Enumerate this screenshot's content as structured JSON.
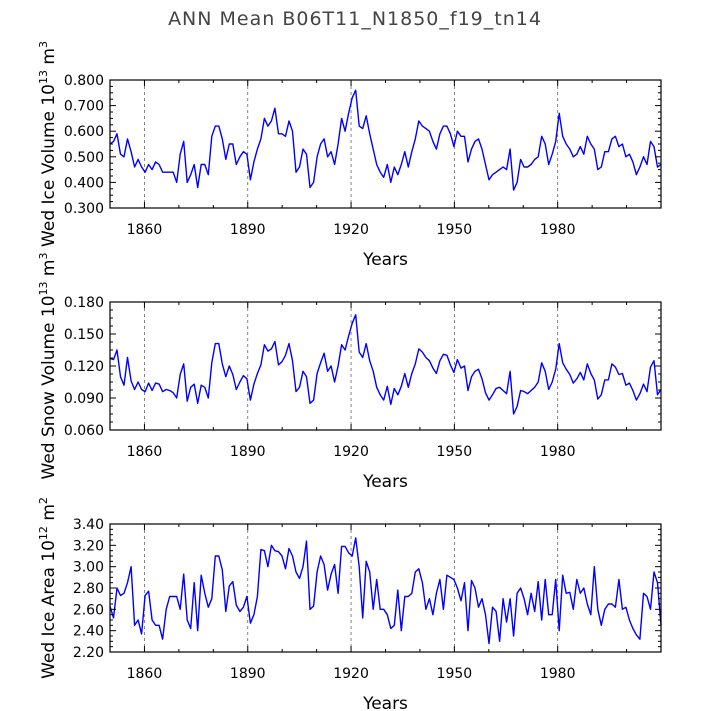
{
  "title": "ANN Mean B06T11_N1850_f19_tn14",
  "chart_data": [
    {
      "type": "line",
      "xlabel": "Years",
      "ylabel": "Wed Ice Volume 10^13 m^3",
      "ylabel_main": "Wed Ice Volume 10",
      "ylabel_exp": "13",
      "ylabel_unit": "m",
      "ylabel_unit_exp": "3",
      "xlim": [
        1850,
        2010
      ],
      "ylim": [
        0.3,
        0.8
      ],
      "xticks": [
        1860,
        1890,
        1920,
        1950,
        1980
      ],
      "yticks": [
        0.3,
        0.4,
        0.5,
        0.6,
        0.7,
        0.8
      ],
      "ytick_labels": [
        "0.300",
        "0.400",
        "0.500",
        "0.600",
        "0.700",
        "0.800"
      ],
      "grid": "vertical dashed at x ticks",
      "color": "#0000ff",
      "series": [
        {
          "values": [
            0.55,
            0.56,
            0.59,
            0.51,
            0.5,
            0.57,
            0.52,
            0.46,
            0.49,
            0.46,
            0.44,
            0.47,
            0.45,
            0.48,
            0.47,
            0.44,
            0.44,
            0.44,
            0.44,
            0.4,
            0.51,
            0.56,
            0.4,
            0.43,
            0.47,
            0.38,
            0.47,
            0.47,
            0.43,
            0.58,
            0.62,
            0.62,
            0.57,
            0.49,
            0.55,
            0.55,
            0.47,
            0.5,
            0.52,
            0.51,
            0.41,
            0.48,
            0.53,
            0.57,
            0.65,
            0.62,
            0.64,
            0.69,
            0.59,
            0.59,
            0.58,
            0.64,
            0.6,
            0.44,
            0.46,
            0.53,
            0.51,
            0.38,
            0.4,
            0.5,
            0.55,
            0.57,
            0.5,
            0.52,
            0.47,
            0.55,
            0.65,
            0.6,
            0.67,
            0.73,
            0.76,
            0.62,
            0.61,
            0.66,
            0.59,
            0.53,
            0.47,
            0.44,
            0.42,
            0.47,
            0.4,
            0.46,
            0.43,
            0.47,
            0.52,
            0.46,
            0.52,
            0.57,
            0.64,
            0.62,
            0.61,
            0.6,
            0.56,
            0.53,
            0.59,
            0.62,
            0.62,
            0.59,
            0.54,
            0.6,
            0.58,
            0.58,
            0.48,
            0.53,
            0.56,
            0.57,
            0.53,
            0.47,
            0.41,
            0.43,
            0.44,
            0.45,
            0.46,
            0.45,
            0.53,
            0.37,
            0.4,
            0.49,
            0.46,
            0.46,
            0.47,
            0.49,
            0.5,
            0.58,
            0.55,
            0.47,
            0.51,
            0.56,
            0.67,
            0.58,
            0.55,
            0.53,
            0.5,
            0.51,
            0.54,
            0.51,
            0.58,
            0.55,
            0.53,
            0.45,
            0.46,
            0.52,
            0.52,
            0.57,
            0.58,
            0.54,
            0.55,
            0.5,
            0.51,
            0.48,
            0.43,
            0.46,
            0.5,
            0.47,
            0.56,
            0.54,
            0.46,
            0.47
          ]
        }
      ]
    },
    {
      "type": "line",
      "xlabel": "Years",
      "ylabel": "Wed Snow Volume 10^13 m^3",
      "ylabel_main": "Wed Snow Volume 10",
      "ylabel_exp": "13",
      "ylabel_unit": "m",
      "ylabel_unit_exp": "3",
      "xlim": [
        1850,
        2010
      ],
      "ylim": [
        0.06,
        0.18
      ],
      "xticks": [
        1860,
        1890,
        1920,
        1950,
        1980
      ],
      "yticks": [
        0.06,
        0.09,
        0.12,
        0.15,
        0.18
      ],
      "ytick_labels": [
        "0.060",
        "0.090",
        "0.120",
        "0.150",
        "0.180"
      ],
      "grid": "vertical dashed at x ticks",
      "color": "#0000ff",
      "series": [
        {
          "values": [
            0.127,
            0.126,
            0.135,
            0.11,
            0.102,
            0.128,
            0.106,
            0.098,
            0.105,
            0.098,
            0.096,
            0.104,
            0.097,
            0.104,
            0.103,
            0.096,
            0.098,
            0.097,
            0.095,
            0.09,
            0.112,
            0.122,
            0.087,
            0.1,
            0.103,
            0.085,
            0.102,
            0.1,
            0.09,
            0.123,
            0.141,
            0.141,
            0.122,
            0.11,
            0.12,
            0.112,
            0.098,
            0.105,
            0.111,
            0.108,
            0.088,
            0.103,
            0.113,
            0.121,
            0.14,
            0.134,
            0.136,
            0.143,
            0.121,
            0.124,
            0.13,
            0.141,
            0.125,
            0.096,
            0.1,
            0.115,
            0.11,
            0.085,
            0.088,
            0.113,
            0.123,
            0.132,
            0.115,
            0.12,
            0.105,
            0.12,
            0.14,
            0.135,
            0.148,
            0.16,
            0.168,
            0.133,
            0.128,
            0.141,
            0.125,
            0.115,
            0.1,
            0.093,
            0.088,
            0.101,
            0.084,
            0.099,
            0.093,
            0.101,
            0.113,
            0.1,
            0.113,
            0.122,
            0.136,
            0.133,
            0.128,
            0.125,
            0.118,
            0.113,
            0.125,
            0.131,
            0.13,
            0.121,
            0.114,
            0.126,
            0.118,
            0.12,
            0.097,
            0.11,
            0.115,
            0.117,
            0.108,
            0.095,
            0.088,
            0.093,
            0.099,
            0.1,
            0.097,
            0.094,
            0.115,
            0.075,
            0.082,
            0.097,
            0.096,
            0.094,
            0.097,
            0.1,
            0.105,
            0.123,
            0.115,
            0.098,
            0.105,
            0.117,
            0.141,
            0.123,
            0.117,
            0.112,
            0.104,
            0.108,
            0.114,
            0.107,
            0.122,
            0.113,
            0.107,
            0.089,
            0.093,
            0.107,
            0.107,
            0.122,
            0.119,
            0.112,
            0.113,
            0.102,
            0.104,
            0.097,
            0.088,
            0.094,
            0.103,
            0.096,
            0.119,
            0.125,
            0.093,
            0.098
          ]
        }
      ]
    },
    {
      "type": "line",
      "xlabel": "Years",
      "ylabel": "Wed Ice Area 10^12 m^2",
      "ylabel_main": "Wed Ice Area 10",
      "ylabel_exp": "12",
      "ylabel_unit": "m",
      "ylabel_unit_exp": "2",
      "xlim": [
        1850,
        2010
      ],
      "ylim": [
        2.2,
        3.4
      ],
      "xticks": [
        1860,
        1890,
        1920,
        1950,
        1980
      ],
      "yticks": [
        2.2,
        2.4,
        2.6,
        2.8,
        3.0,
        3.2,
        3.4
      ],
      "ytick_labels": [
        "2.20",
        "2.40",
        "2.60",
        "2.80",
        "3.00",
        "3.20",
        "3.40"
      ],
      "grid": "vertical dashed at x ticks",
      "color": "#0000ff",
      "series": [
        {
          "values": [
            2.63,
            2.52,
            2.8,
            2.73,
            2.75,
            2.85,
            3.0,
            2.45,
            2.5,
            2.37,
            2.73,
            2.77,
            2.5,
            2.45,
            2.45,
            2.32,
            2.6,
            2.72,
            2.72,
            2.72,
            2.6,
            2.93,
            2.5,
            2.42,
            2.85,
            2.4,
            2.92,
            2.75,
            2.62,
            2.7,
            3.1,
            3.1,
            2.97,
            2.58,
            2.82,
            2.86,
            2.64,
            2.58,
            2.62,
            2.72,
            2.47,
            2.55,
            2.72,
            3.16,
            3.15,
            3.0,
            3.2,
            3.15,
            3.14,
            3.1,
            2.98,
            3.17,
            3.1,
            2.95,
            2.89,
            3.0,
            3.24,
            2.6,
            2.63,
            2.95,
            3.1,
            3.02,
            2.78,
            2.93,
            3.02,
            2.75,
            3.19,
            3.19,
            3.13,
            3.1,
            3.27,
            3.0,
            2.52,
            3.05,
            2.95,
            2.6,
            2.88,
            2.6,
            2.6,
            2.55,
            2.42,
            2.45,
            2.78,
            2.4,
            2.72,
            2.72,
            2.75,
            2.95,
            2.98,
            2.85,
            2.6,
            2.7,
            2.55,
            2.75,
            2.88,
            2.6,
            2.92,
            2.9,
            2.88,
            2.8,
            2.68,
            2.85,
            2.4,
            2.87,
            2.8,
            2.62,
            2.7,
            2.55,
            2.28,
            2.62,
            2.58,
            2.3,
            2.7,
            2.48,
            2.7,
            2.35,
            2.75,
            2.8,
            2.7,
            2.55,
            2.75,
            2.58,
            2.86,
            2.5,
            2.88,
            2.55,
            2.55,
            2.88,
            2.4,
            2.92,
            2.75,
            2.76,
            2.6,
            2.88,
            2.75,
            2.8,
            2.65,
            2.55,
            3.0,
            2.6,
            2.45,
            2.6,
            2.65,
            2.65,
            2.62,
            2.88,
            2.6,
            2.62,
            2.5,
            2.42,
            2.36,
            2.32,
            2.75,
            2.72,
            2.6,
            2.95,
            2.85,
            2.45
          ]
        }
      ]
    }
  ]
}
